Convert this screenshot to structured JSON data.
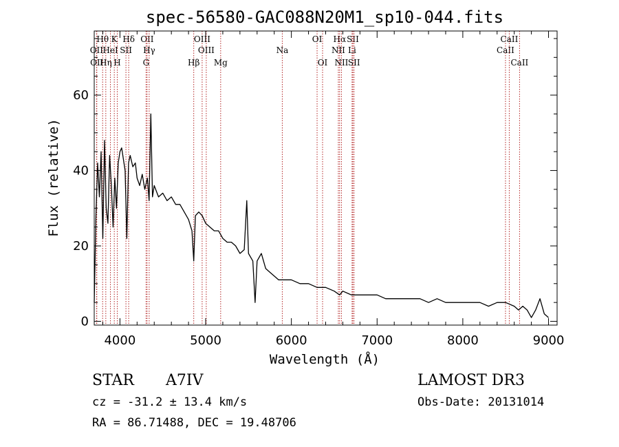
{
  "chart_data": {
    "type": "line",
    "title": "spec-56580-GAC088N20M1_sp10-044.fits",
    "xlabel": "Wavelength (Å)",
    "ylabel": "Flux (relative)",
    "xlim": [
      3700,
      9100
    ],
    "ylim": [
      -1,
      77
    ],
    "xticks": [
      4000,
      5000,
      6000,
      7000,
      8000,
      9000
    ],
    "yticks": [
      0,
      20,
      40,
      60
    ],
    "x_tick_labels": [
      "4000",
      "5000",
      "6000",
      "7000",
      "8000",
      "9000"
    ],
    "y_tick_labels": [
      "0",
      "20",
      "40",
      "60"
    ],
    "line_color": "#000000",
    "marker_color": "#b22222",
    "spectrum": {
      "x": [
        3700,
        3720,
        3740,
        3760,
        3780,
        3800,
        3820,
        3840,
        3860,
        3880,
        3900,
        3920,
        3940,
        3960,
        3980,
        4000,
        4020,
        4040,
        4060,
        4080,
        4100,
        4120,
        4150,
        4180,
        4200,
        4230,
        4260,
        4290,
        4320,
        4340,
        4360,
        4380,
        4400,
        4450,
        4500,
        4550,
        4600,
        4650,
        4700,
        4750,
        4800,
        4840,
        4861,
        4880,
        4920,
        4960,
        5000,
        5050,
        5100,
        5150,
        5200,
        5250,
        5300,
        5350,
        5400,
        5450,
        5480,
        5500,
        5550,
        5577,
        5600,
        5650,
        5700,
        5750,
        5800,
        5850,
        5900,
        5950,
        6000,
        6100,
        6200,
        6300,
        6400,
        6500,
        6563,
        6600,
        6700,
        6800,
        6900,
        7000,
        7100,
        7200,
        7300,
        7400,
        7500,
        7600,
        7700,
        7800,
        7900,
        8000,
        8100,
        8200,
        8300,
        8400,
        8500,
        8600,
        8650,
        8700,
        8750,
        8800,
        8850,
        8900,
        8950,
        9000
      ],
      "y": [
        5,
        28,
        42,
        33,
        45,
        22,
        48,
        30,
        26,
        44,
        36,
        25,
        38,
        30,
        42,
        45,
        46,
        43,
        40,
        22,
        42,
        44,
        41,
        42,
        38,
        36,
        39,
        35,
        38,
        32,
        55,
        33,
        36,
        33,
        34,
        32,
        33,
        31,
        31,
        29,
        27,
        24,
        16,
        28,
        29,
        28,
        26,
        25,
        24,
        24,
        22,
        21,
        21,
        20,
        18,
        19,
        32,
        18,
        16,
        5,
        16,
        18,
        14,
        13,
        12,
        11,
        11,
        11,
        11,
        10,
        10,
        9,
        9,
        8,
        7,
        8,
        7,
        7,
        7,
        7,
        6,
        6,
        6,
        6,
        6,
        5,
        6,
        5,
        5,
        5,
        5,
        5,
        4,
        5,
        5,
        4,
        3,
        4,
        3,
        1,
        3,
        6,
        2,
        1
      ]
    },
    "line_markers": [
      {
        "label": "Hθ",
        "x": 3798,
        "row": 1
      },
      {
        "label": "OII",
        "x": 3727,
        "row": 2
      },
      {
        "label": "OII",
        "x": 3730,
        "row": 3
      },
      {
        "label": "Hη",
        "x": 3835,
        "row": 3
      },
      {
        "label": "K",
        "x": 3934,
        "row": 1
      },
      {
        "label": "HeI",
        "x": 3889,
        "row": 2
      },
      {
        "label": "H",
        "x": 3969,
        "row": 3
      },
      {
        "label": "SII",
        "x": 4070,
        "row": 2
      },
      {
        "label": "Hδ",
        "x": 4102,
        "row": 1
      },
      {
        "label": "OII",
        "x": 4317,
        "row": 1
      },
      {
        "label": "Hγ",
        "x": 4341,
        "row": 2
      },
      {
        "label": "G",
        "x": 4305,
        "row": 3
      },
      {
        "label": "Hβ",
        "x": 4861,
        "row": 3
      },
      {
        "label": "OIII",
        "x": 4959,
        "row": 1
      },
      {
        "label": "OIII",
        "x": 5007,
        "row": 2
      },
      {
        "label": "Mg",
        "x": 5175,
        "row": 3
      },
      {
        "label": "Na",
        "x": 5894,
        "row": 2
      },
      {
        "label": "OI",
        "x": 6300,
        "row": 1
      },
      {
        "label": "OI",
        "x": 6364,
        "row": 3
      },
      {
        "label": "Hα",
        "x": 6563,
        "row": 1
      },
      {
        "label": "NII",
        "x": 6548,
        "row": 2
      },
      {
        "label": "NII",
        "x": 6584,
        "row": 3
      },
      {
        "label": "SII",
        "x": 6717,
        "row": 1
      },
      {
        "label": "Li",
        "x": 6708,
        "row": 2
      },
      {
        "label": "SII",
        "x": 6731,
        "row": 3
      },
      {
        "label": "CaII",
        "x": 8498,
        "row": 2
      },
      {
        "label": "CaII",
        "x": 8542,
        "row": 1
      },
      {
        "label": "CaII",
        "x": 8662,
        "row": 3
      }
    ]
  },
  "info": {
    "object_class": "STAR",
    "subclass": "A7IV",
    "survey": "LAMOST DR3",
    "redshift_text": "cz = -31.2 ± 13.4 km/s",
    "obs_date_text": "Obs-Date: 20131014",
    "coords_text": "RA =  86.71488, DEC =  19.48706"
  }
}
